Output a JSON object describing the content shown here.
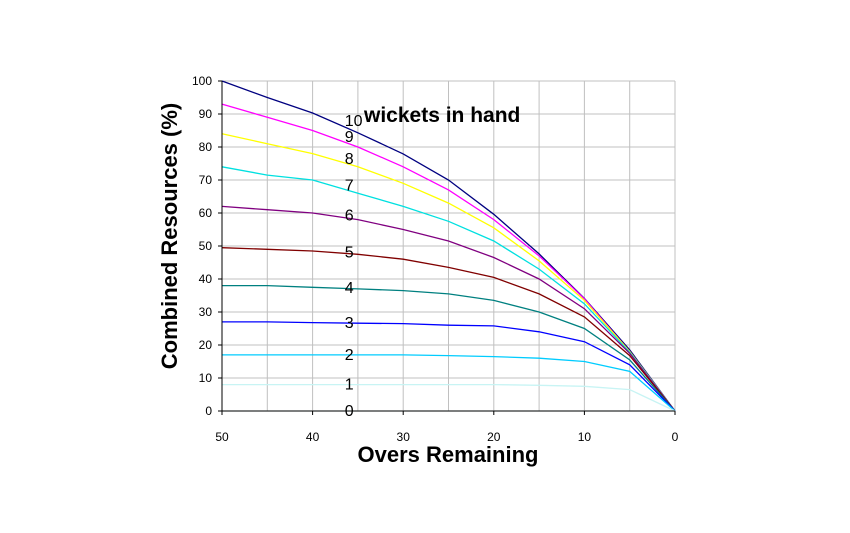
{
  "chart_data": {
    "type": "line",
    "xlabel": "Overs Remaining",
    "ylabel": "Combined Resources (%)",
    "annotation": "wickets in hand",
    "xlim": [
      50,
      0
    ],
    "ylim": [
      0,
      100
    ],
    "x_ticks": [
      50,
      40,
      30,
      20,
      10,
      0
    ],
    "y_ticks": [
      0,
      10,
      20,
      30,
      40,
      50,
      60,
      70,
      80,
      90,
      100
    ],
    "grid": true,
    "legend": "none",
    "series": [
      {
        "name": "10",
        "color": "#000080",
        "points": [
          [
            50,
            100
          ],
          [
            45,
            95
          ],
          [
            40,
            90.3
          ],
          [
            35,
            84.3
          ],
          [
            30,
            77.9
          ],
          [
            25,
            70
          ],
          [
            20,
            59.6
          ],
          [
            15,
            47.6
          ],
          [
            10,
            34.1
          ],
          [
            5,
            18.5
          ],
          [
            0,
            0
          ]
        ]
      },
      {
        "name": "9",
        "color": "#ff00ff",
        "points": [
          [
            50,
            93
          ],
          [
            45,
            89
          ],
          [
            40,
            85
          ],
          [
            35,
            80
          ],
          [
            30,
            74
          ],
          [
            25,
            67
          ],
          [
            20,
            58
          ],
          [
            15,
            47
          ],
          [
            10,
            34
          ],
          [
            5,
            18
          ],
          [
            0,
            0
          ]
        ]
      },
      {
        "name": "8",
        "color": "#ffff00",
        "points": [
          [
            50,
            84
          ],
          [
            45,
            81
          ],
          [
            40,
            78
          ],
          [
            35,
            74
          ],
          [
            30,
            69
          ],
          [
            25,
            63
          ],
          [
            20,
            55.5
          ],
          [
            15,
            45.5
          ],
          [
            10,
            33.5
          ],
          [
            5,
            18
          ],
          [
            0,
            0
          ]
        ]
      },
      {
        "name": "7",
        "color": "#00e0e0",
        "points": [
          [
            50,
            74
          ],
          [
            45,
            71.5
          ],
          [
            40,
            70
          ],
          [
            35,
            66
          ],
          [
            30,
            62
          ],
          [
            25,
            57.5
          ],
          [
            20,
            51.5
          ],
          [
            15,
            43
          ],
          [
            10,
            32.5
          ],
          [
            5,
            17.8
          ],
          [
            0,
            0
          ]
        ]
      },
      {
        "name": "6",
        "color": "#800080",
        "points": [
          [
            50,
            62
          ],
          [
            45,
            61
          ],
          [
            40,
            60
          ],
          [
            35,
            58
          ],
          [
            30,
            55
          ],
          [
            25,
            51.5
          ],
          [
            20,
            46.5
          ],
          [
            15,
            40
          ],
          [
            10,
            31
          ],
          [
            5,
            17.5
          ],
          [
            0,
            0
          ]
        ]
      },
      {
        "name": "5",
        "color": "#800000",
        "points": [
          [
            50,
            49.5
          ],
          [
            45,
            49
          ],
          [
            40,
            48.5
          ],
          [
            35,
            47.5
          ],
          [
            30,
            46
          ],
          [
            25,
            43.5
          ],
          [
            20,
            40.5
          ],
          [
            15,
            35.5
          ],
          [
            10,
            28.5
          ],
          [
            5,
            16.8
          ],
          [
            0,
            0
          ]
        ]
      },
      {
        "name": "4",
        "color": "#008080",
        "points": [
          [
            50,
            38
          ],
          [
            45,
            38
          ],
          [
            40,
            37.5
          ],
          [
            35,
            37
          ],
          [
            30,
            36.5
          ],
          [
            25,
            35.5
          ],
          [
            20,
            33.5
          ],
          [
            15,
            30
          ],
          [
            10,
            25
          ],
          [
            5,
            15.5
          ],
          [
            0,
            0
          ]
        ]
      },
      {
        "name": "3",
        "color": "#0000ff",
        "points": [
          [
            50,
            27
          ],
          [
            45,
            27
          ],
          [
            40,
            26.8
          ],
          [
            35,
            26.6
          ],
          [
            30,
            26.5
          ],
          [
            25,
            26
          ],
          [
            20,
            25.8
          ],
          [
            15,
            24
          ],
          [
            10,
            21
          ],
          [
            5,
            14
          ],
          [
            0,
            0
          ]
        ]
      },
      {
        "name": "2",
        "color": "#00ccff",
        "points": [
          [
            50,
            17
          ],
          [
            45,
            17
          ],
          [
            40,
            17
          ],
          [
            35,
            17
          ],
          [
            30,
            17
          ],
          [
            25,
            16.8
          ],
          [
            20,
            16.5
          ],
          [
            15,
            16
          ],
          [
            10,
            15
          ],
          [
            5,
            12
          ],
          [
            0,
            0
          ]
        ]
      },
      {
        "name": "1",
        "color": "#c8f4f4",
        "points": [
          [
            50,
            8
          ],
          [
            45,
            8
          ],
          [
            40,
            8
          ],
          [
            35,
            8
          ],
          [
            30,
            8
          ],
          [
            25,
            8
          ],
          [
            20,
            8
          ],
          [
            15,
            7.8
          ],
          [
            10,
            7.5
          ],
          [
            5,
            6.5
          ],
          [
            0,
            0
          ]
        ]
      },
      {
        "name": "0",
        "color": "#e8f8f8",
        "points": [
          [
            50,
            0
          ],
          [
            0,
            0
          ]
        ]
      }
    ]
  }
}
